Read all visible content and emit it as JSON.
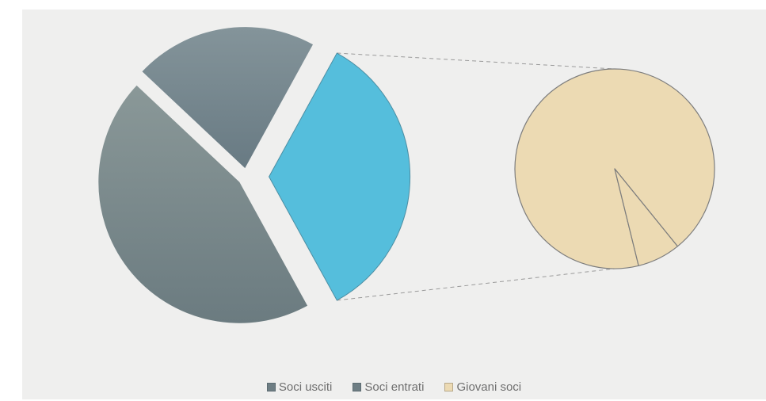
{
  "chart_data": {
    "type": "pie",
    "subtype": "pie-of-pie",
    "slices": [
      {
        "name": "Soci usciti",
        "value": 45,
        "color": "#7e8e91"
      },
      {
        "name": "Soci entrati",
        "value": 21,
        "color": "#6c7f87"
      },
      {
        "name": "Giovani soci",
        "value": 34,
        "color": "#55bedc"
      }
    ],
    "secondary_pie": {
      "source": "Giovani soci",
      "slices": [
        {
          "value": 93,
          "color": "#ecdab3"
        },
        {
          "value": 7,
          "color": "#ecdab3"
        }
      ]
    },
    "legend_position": "bottom",
    "legend": [
      {
        "label": "Soci usciti",
        "color": "#6e7e84"
      },
      {
        "label": "Soci entrati",
        "color": "#6e7e84"
      },
      {
        "label": "Giovani soci",
        "color": "#ecdab3"
      }
    ]
  }
}
